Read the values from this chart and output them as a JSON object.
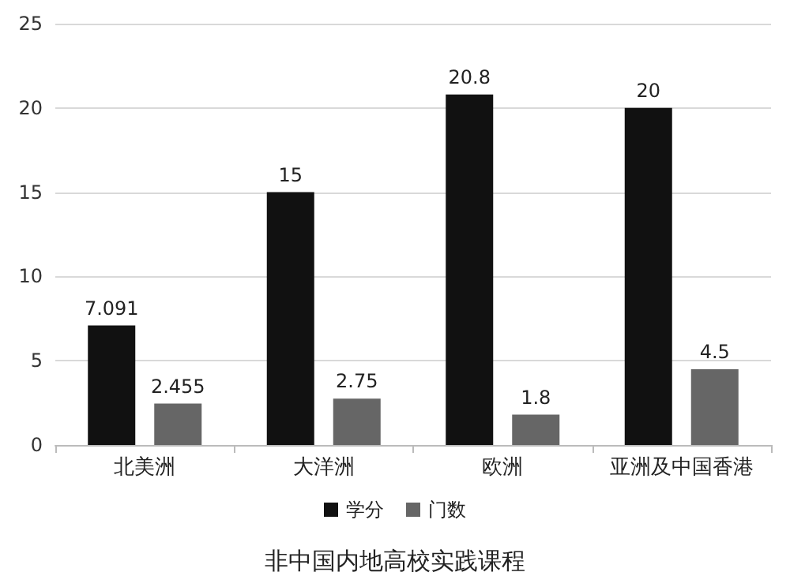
{
  "chart_data": {
    "type": "bar",
    "title": "非中国内地高校实践课程",
    "categories": [
      "北美洲",
      "大洋洲",
      "欧洲",
      "亚洲及中国香港"
    ],
    "series": [
      {
        "name": "学分",
        "color": "#111111",
        "values": [
          7.091,
          15,
          20.8,
          20
        ]
      },
      {
        "name": "门数",
        "color": "#666666",
        "values": [
          2.455,
          2.75,
          1.8,
          4.5
        ]
      }
    ],
    "ylim": [
      0,
      25
    ],
    "yticks": [
      0,
      5,
      10,
      15,
      20,
      25
    ],
    "grid": "y",
    "legend": "bottom",
    "data_labels": true
  }
}
